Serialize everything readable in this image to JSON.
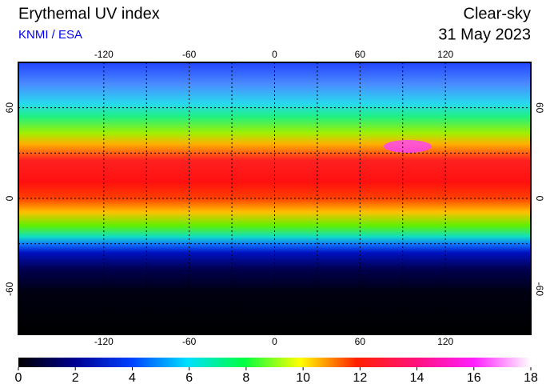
{
  "header": {
    "title": "Erythemal UV index",
    "source": "KNMI / ESA",
    "condition": "Clear-sky",
    "date": "31 May 2023"
  },
  "map": {
    "lonlim": [
      -180,
      180
    ],
    "latlim": [
      90,
      -90
    ],
    "lon_ticks": [
      -120,
      -60,
      0,
      60,
      120
    ],
    "lat_ticks": [
      60,
      0,
      -60
    ]
  },
  "colorbar": {
    "lim": [
      0,
      18
    ],
    "ticks": [
      0,
      2,
      4,
      6,
      8,
      10,
      12,
      14,
      16,
      18
    ]
  }
}
